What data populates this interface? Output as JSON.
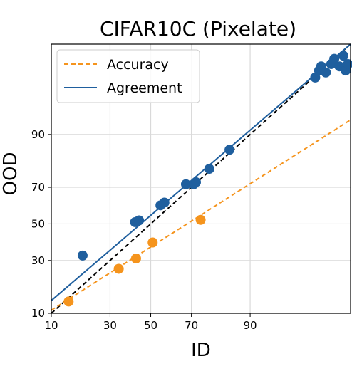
{
  "chart_data": {
    "type": "scatter",
    "title": "CIFAR10C (Pixelate)",
    "xlabel": "ID",
    "ylabel": "OOD",
    "xticks": [
      10,
      30,
      50,
      70,
      90
    ],
    "xtick_labels": [
      "10",
      "30",
      "50",
      "70",
      "90"
    ],
    "yticks": [
      10,
      30,
      50,
      70,
      90
    ],
    "yticks_labels": [
      "10",
      "30",
      "50",
      "70",
      "90"
    ],
    "xlim": [
      10,
      99.5
    ],
    "ylim": [
      10,
      99.5
    ],
    "scale": "probit",
    "grid": true,
    "legend": {
      "placement": "top-left",
      "entries": [
        {
          "label": "Accuracy",
          "style": "dashed",
          "color": "#f5941d"
        },
        {
          "label": "Agreement",
          "style": "solid",
          "color": "#1f5f9e"
        }
      ]
    },
    "diagonal": {
      "style": "dashed",
      "color": "#000000"
    },
    "series": [
      {
        "name": "Accuracy",
        "color": "#f5941d",
        "fit_line": [
          [
            10,
            10.8
          ],
          [
            99.5,
            93.2
          ]
        ],
        "points": [
          [
            14.5,
            13.3
          ],
          [
            34,
            26
          ],
          [
            42.5,
            31
          ],
          [
            51,
            39.5
          ],
          [
            74,
            52.3
          ]
        ]
      },
      {
        "name": "Agreement",
        "color": "#1f5f9e",
        "fit_line": [
          [
            10,
            13.6
          ],
          [
            99.5,
            99.5
          ]
        ],
        "points": [
          [
            19,
            32.5
          ],
          [
            42,
            51
          ],
          [
            44,
            52
          ],
          [
            55,
            60.5
          ],
          [
            57,
            62
          ],
          [
            67.5,
            71.5
          ],
          [
            71,
            71.5
          ],
          [
            72,
            72.5
          ],
          [
            77.5,
            78.5
          ],
          [
            84.5,
            85.6
          ],
          [
            98.3,
            98.2
          ],
          [
            98.5,
            98.6
          ],
          [
            98.6,
            98.8
          ],
          [
            98.8,
            98.5
          ],
          [
            99.0,
            98.9
          ],
          [
            99.1,
            99.1
          ],
          [
            99.25,
            98.8
          ],
          [
            99.35,
            99.2
          ],
          [
            99.4,
            98.6
          ],
          [
            99.45,
            98.9
          ]
        ]
      }
    ]
  }
}
